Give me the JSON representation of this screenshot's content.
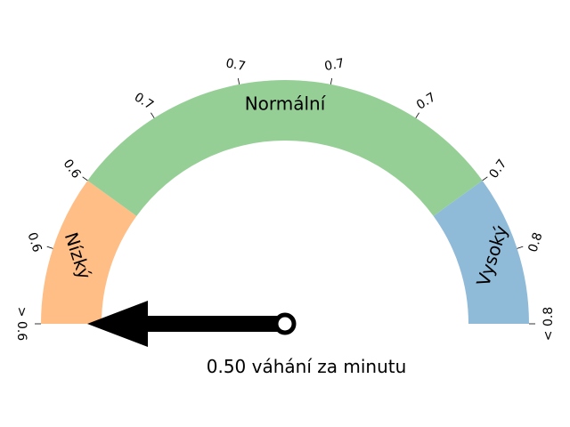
{
  "chart_data": {
    "type": "gauge",
    "bands": [
      {
        "name": "Nízký",
        "from": 0,
        "to": 0.2,
        "color": "#ffbe86"
      },
      {
        "name": "Normální",
        "from": 0.2,
        "to": 0.8,
        "color": "#96cf96"
      },
      {
        "name": "Vysoký",
        "from": 0.8,
        "to": 1.0,
        "color": "#8fbbd9"
      }
    ],
    "ticks": [
      {
        "pos": 0.0,
        "label": "> 0.6"
      },
      {
        "pos": 0.1,
        "label": "0.6"
      },
      {
        "pos": 0.2,
        "label": "0.6"
      },
      {
        "pos": 0.32,
        "label": "0.7"
      },
      {
        "pos": 0.44,
        "label": "0.7"
      },
      {
        "pos": 0.56,
        "label": "0.7"
      },
      {
        "pos": 0.68,
        "label": "0.7"
      },
      {
        "pos": 0.8,
        "label": "0.7"
      },
      {
        "pos": 0.9,
        "label": "0.8"
      },
      {
        "pos": 1.0,
        "label": "< 0.8"
      }
    ],
    "needle_position": 0.0,
    "readout": "0.50 váhání za minutu"
  }
}
